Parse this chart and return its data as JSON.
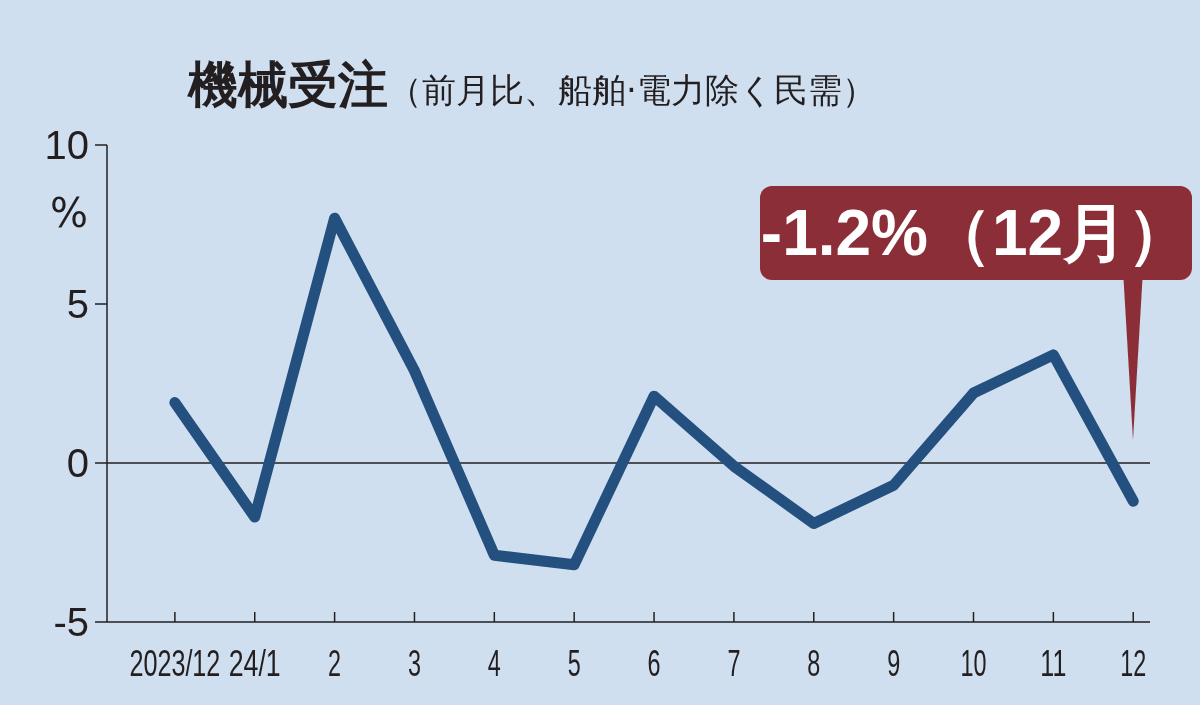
{
  "chart_data": {
    "type": "line",
    "title": "機械受注",
    "subtitle": "（前月比、船舶·電力除く民需）",
    "ylabel": "%",
    "categories": [
      "2023/12",
      "24/1",
      "2",
      "3",
      "4",
      "5",
      "6",
      "7",
      "8",
      "9",
      "10",
      "11",
      "12"
    ],
    "series": [
      {
        "color": "#24507f",
        "values": [
          1.9,
          -1.7,
          7.7,
          2.9,
          -2.9,
          -3.2,
          2.1,
          -0.1,
          -1.9,
          -0.7,
          2.2,
          3.4,
          -1.2
        ]
      }
    ],
    "ylim": [
      -5,
      10
    ],
    "yticks": [
      -5,
      0,
      5,
      10
    ],
    "ref_lines": [
      {
        "axis": "y",
        "value": 0,
        "color": "#231f20"
      }
    ],
    "annotations": [
      "-1.2%（12月）"
    ],
    "grid": false,
    "marker": "none",
    "line_style": "solid"
  }
}
